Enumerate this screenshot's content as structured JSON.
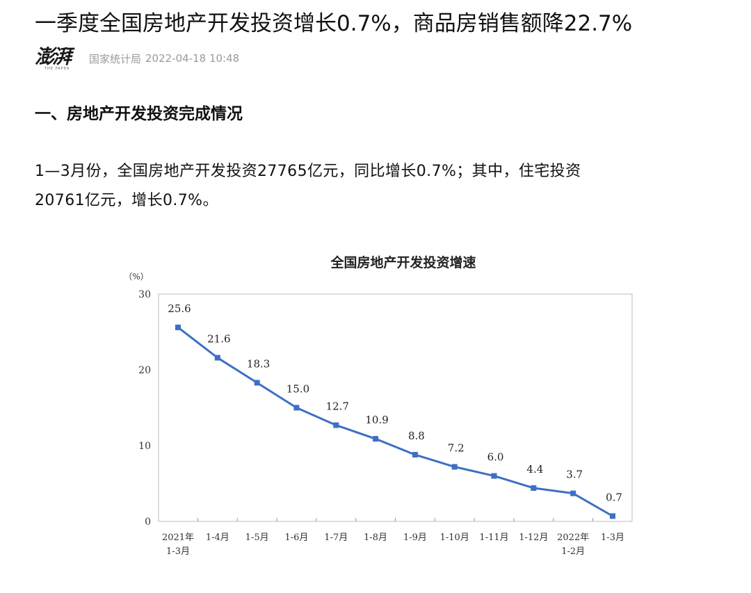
{
  "article": {
    "headline": "一季度全国房地产开发投资增长0.7%，商品房销售额降22.7%",
    "logo": {
      "main": "澎湃",
      "sub": "THE PAPER"
    },
    "source": "国家统计局",
    "timestamp": "2022-04-18 10:48",
    "section_title": "一、房地产开发投资完成情况",
    "paragraph_line1": "1—3月份，全国房地产开发投资27765亿元，同比增长0.7%；其中，住宅投资",
    "paragraph_line2": "20761亿元，增长0.7%。"
  },
  "chart_data": {
    "type": "line",
    "title": "全国房地产开发投资增速",
    "ylabel": "（%）",
    "xlabel": "",
    "ylim": [
      0,
      30
    ],
    "yticks": [
      0,
      10,
      20,
      30
    ],
    "grid": false,
    "line_color": "#3d6fc4",
    "categories": [
      [
        "2021年",
        "1-3月"
      ],
      [
        "1-4月"
      ],
      [
        "1-5月"
      ],
      [
        "1-6月"
      ],
      [
        "1-7月"
      ],
      [
        "1-8月"
      ],
      [
        "1-9月"
      ],
      [
        "1-10月"
      ],
      [
        "1-11月"
      ],
      [
        "1-12月"
      ],
      [
        "2022年",
        "1-2月"
      ],
      [
        "1-3月"
      ]
    ],
    "values": [
      25.6,
      21.6,
      18.3,
      15.0,
      12.7,
      10.9,
      8.8,
      7.2,
      6.0,
      4.4,
      3.7,
      0.7
    ],
    "data_labels": [
      "25.6",
      "21.6",
      "18.3",
      "15.0",
      "12.7",
      "10.9",
      "8.8",
      "7.2",
      "6.0",
      "4.4",
      "3.7",
      "0.7"
    ]
  }
}
